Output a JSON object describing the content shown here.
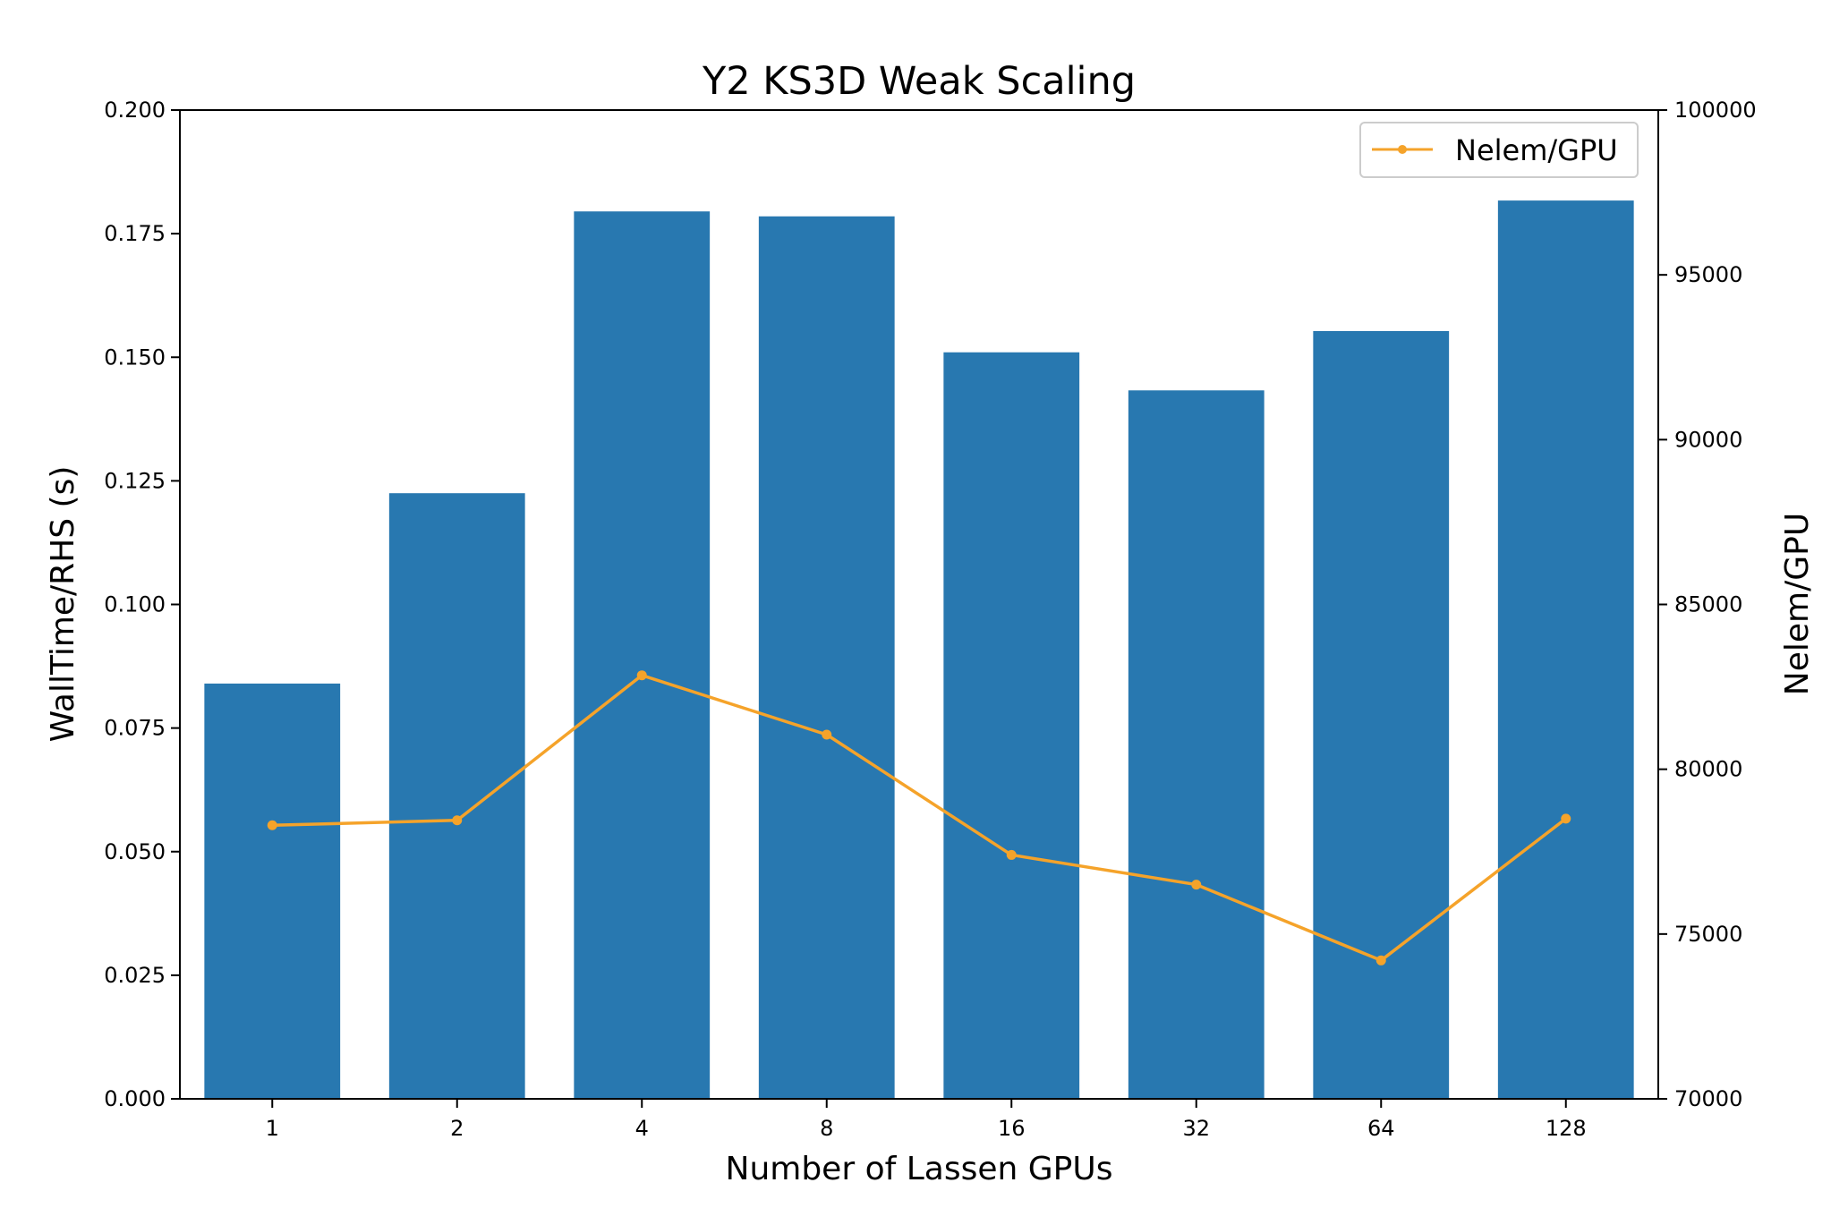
{
  "chart_data": {
    "type": "bar",
    "title": "Y2 KS3D Weak Scaling",
    "xlabel": "Number of Lassen GPUs",
    "ylabel": "WallTime/RHS (s)",
    "y2label": "Nelem/GPU",
    "categories": [
      "1",
      "2",
      "4",
      "8",
      "16",
      "32",
      "64",
      "128"
    ],
    "ylim": [
      0,
      0.2
    ],
    "yticks": [
      "0.000",
      "0.025",
      "0.050",
      "0.075",
      "0.100",
      "0.125",
      "0.150",
      "0.175",
      "0.200"
    ],
    "y2lim": [
      70000,
      100000
    ],
    "y2ticks": [
      "70000",
      "75000",
      "80000",
      "85000",
      "90000",
      "95000",
      "100000"
    ],
    "grid": false,
    "legend_position": "top-right",
    "series": [
      {
        "type": "bar",
        "axis": "left",
        "color": "#2878b0",
        "values": [
          0.084,
          0.1225,
          0.1795,
          0.1785,
          0.151,
          0.1433,
          0.1553,
          0.1817
        ]
      },
      {
        "name": "Nelem/GPU",
        "type": "line",
        "axis": "right",
        "color": "#f5a32a",
        "marker": "circle",
        "values": [
          78300,
          78450,
          82850,
          81050,
          77400,
          76500,
          74200,
          78500
        ]
      }
    ]
  }
}
